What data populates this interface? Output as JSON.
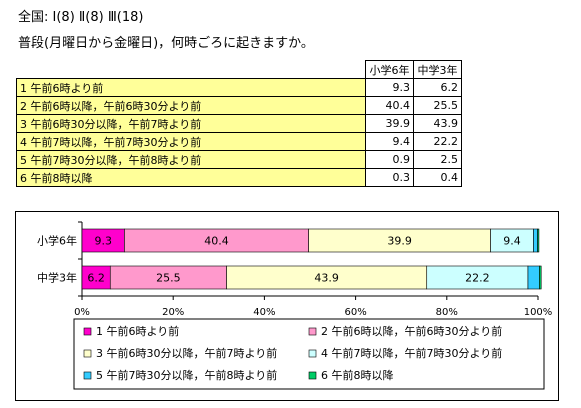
{
  "header": {
    "line1": "全国: Ⅰ(8)  Ⅱ(8)  Ⅲ(18)",
    "question": "普段(月曜日から金曜日)，何時ごろに起きますか。"
  },
  "table": {
    "columns": [
      "小学6年",
      "中学3年"
    ],
    "rows": [
      {
        "label": "1  午前6時より前",
        "values": [
          "9.3",
          "6.2"
        ]
      },
      {
        "label": "2  午前6時以降，午前6時30分より前",
        "values": [
          "40.4",
          "25.5"
        ]
      },
      {
        "label": "3  午前6時30分以降，午前7時より前",
        "values": [
          "39.9",
          "43.9"
        ]
      },
      {
        "label": "4  午前7時以降，午前7時30分より前",
        "values": [
          "9.4",
          "22.2"
        ]
      },
      {
        "label": "5  午前7時30分以降，午前8時より前",
        "values": [
          "0.9",
          "2.5"
        ]
      },
      {
        "label": "6  午前8時以降",
        "values": [
          "0.3",
          "0.4"
        ]
      }
    ]
  },
  "chart_data": {
    "type": "bar",
    "orientation": "horizontal",
    "stacked": true,
    "categories": [
      "小学6年",
      "中学3年"
    ],
    "series": [
      {
        "name": "1  午前6時より前",
        "values": [
          9.3,
          6.2
        ],
        "color": "#ff00cc"
      },
      {
        "name": "2  午前6時以降，午前6時30分より前",
        "values": [
          40.4,
          25.5
        ],
        "color": "#ff99cc"
      },
      {
        "name": "3  午前6時30分以降，午前7時より前",
        "values": [
          39.9,
          43.9
        ],
        "color": "#ffffcc"
      },
      {
        "name": "4  午前7時以降，午前7時30分より前",
        "values": [
          9.4,
          22.2
        ],
        "color": "#ccffff"
      },
      {
        "name": "5  午前7時30分以降，午前8時より前",
        "values": [
          0.9,
          2.5
        ],
        "color": "#33ccff"
      },
      {
        "name": "6  午前8時以降",
        "values": [
          0.3,
          0.4
        ],
        "color": "#00cc66"
      }
    ],
    "xticks": [
      "0%",
      "20%",
      "40%",
      "60%",
      "80%",
      "100%"
    ],
    "xlim": [
      0,
      100
    ],
    "value_labels_min": 5,
    "legend_position": "bottom",
    "legend_layout": [
      [
        0,
        1
      ],
      [
        2,
        3
      ],
      [
        4,
        5
      ]
    ]
  }
}
